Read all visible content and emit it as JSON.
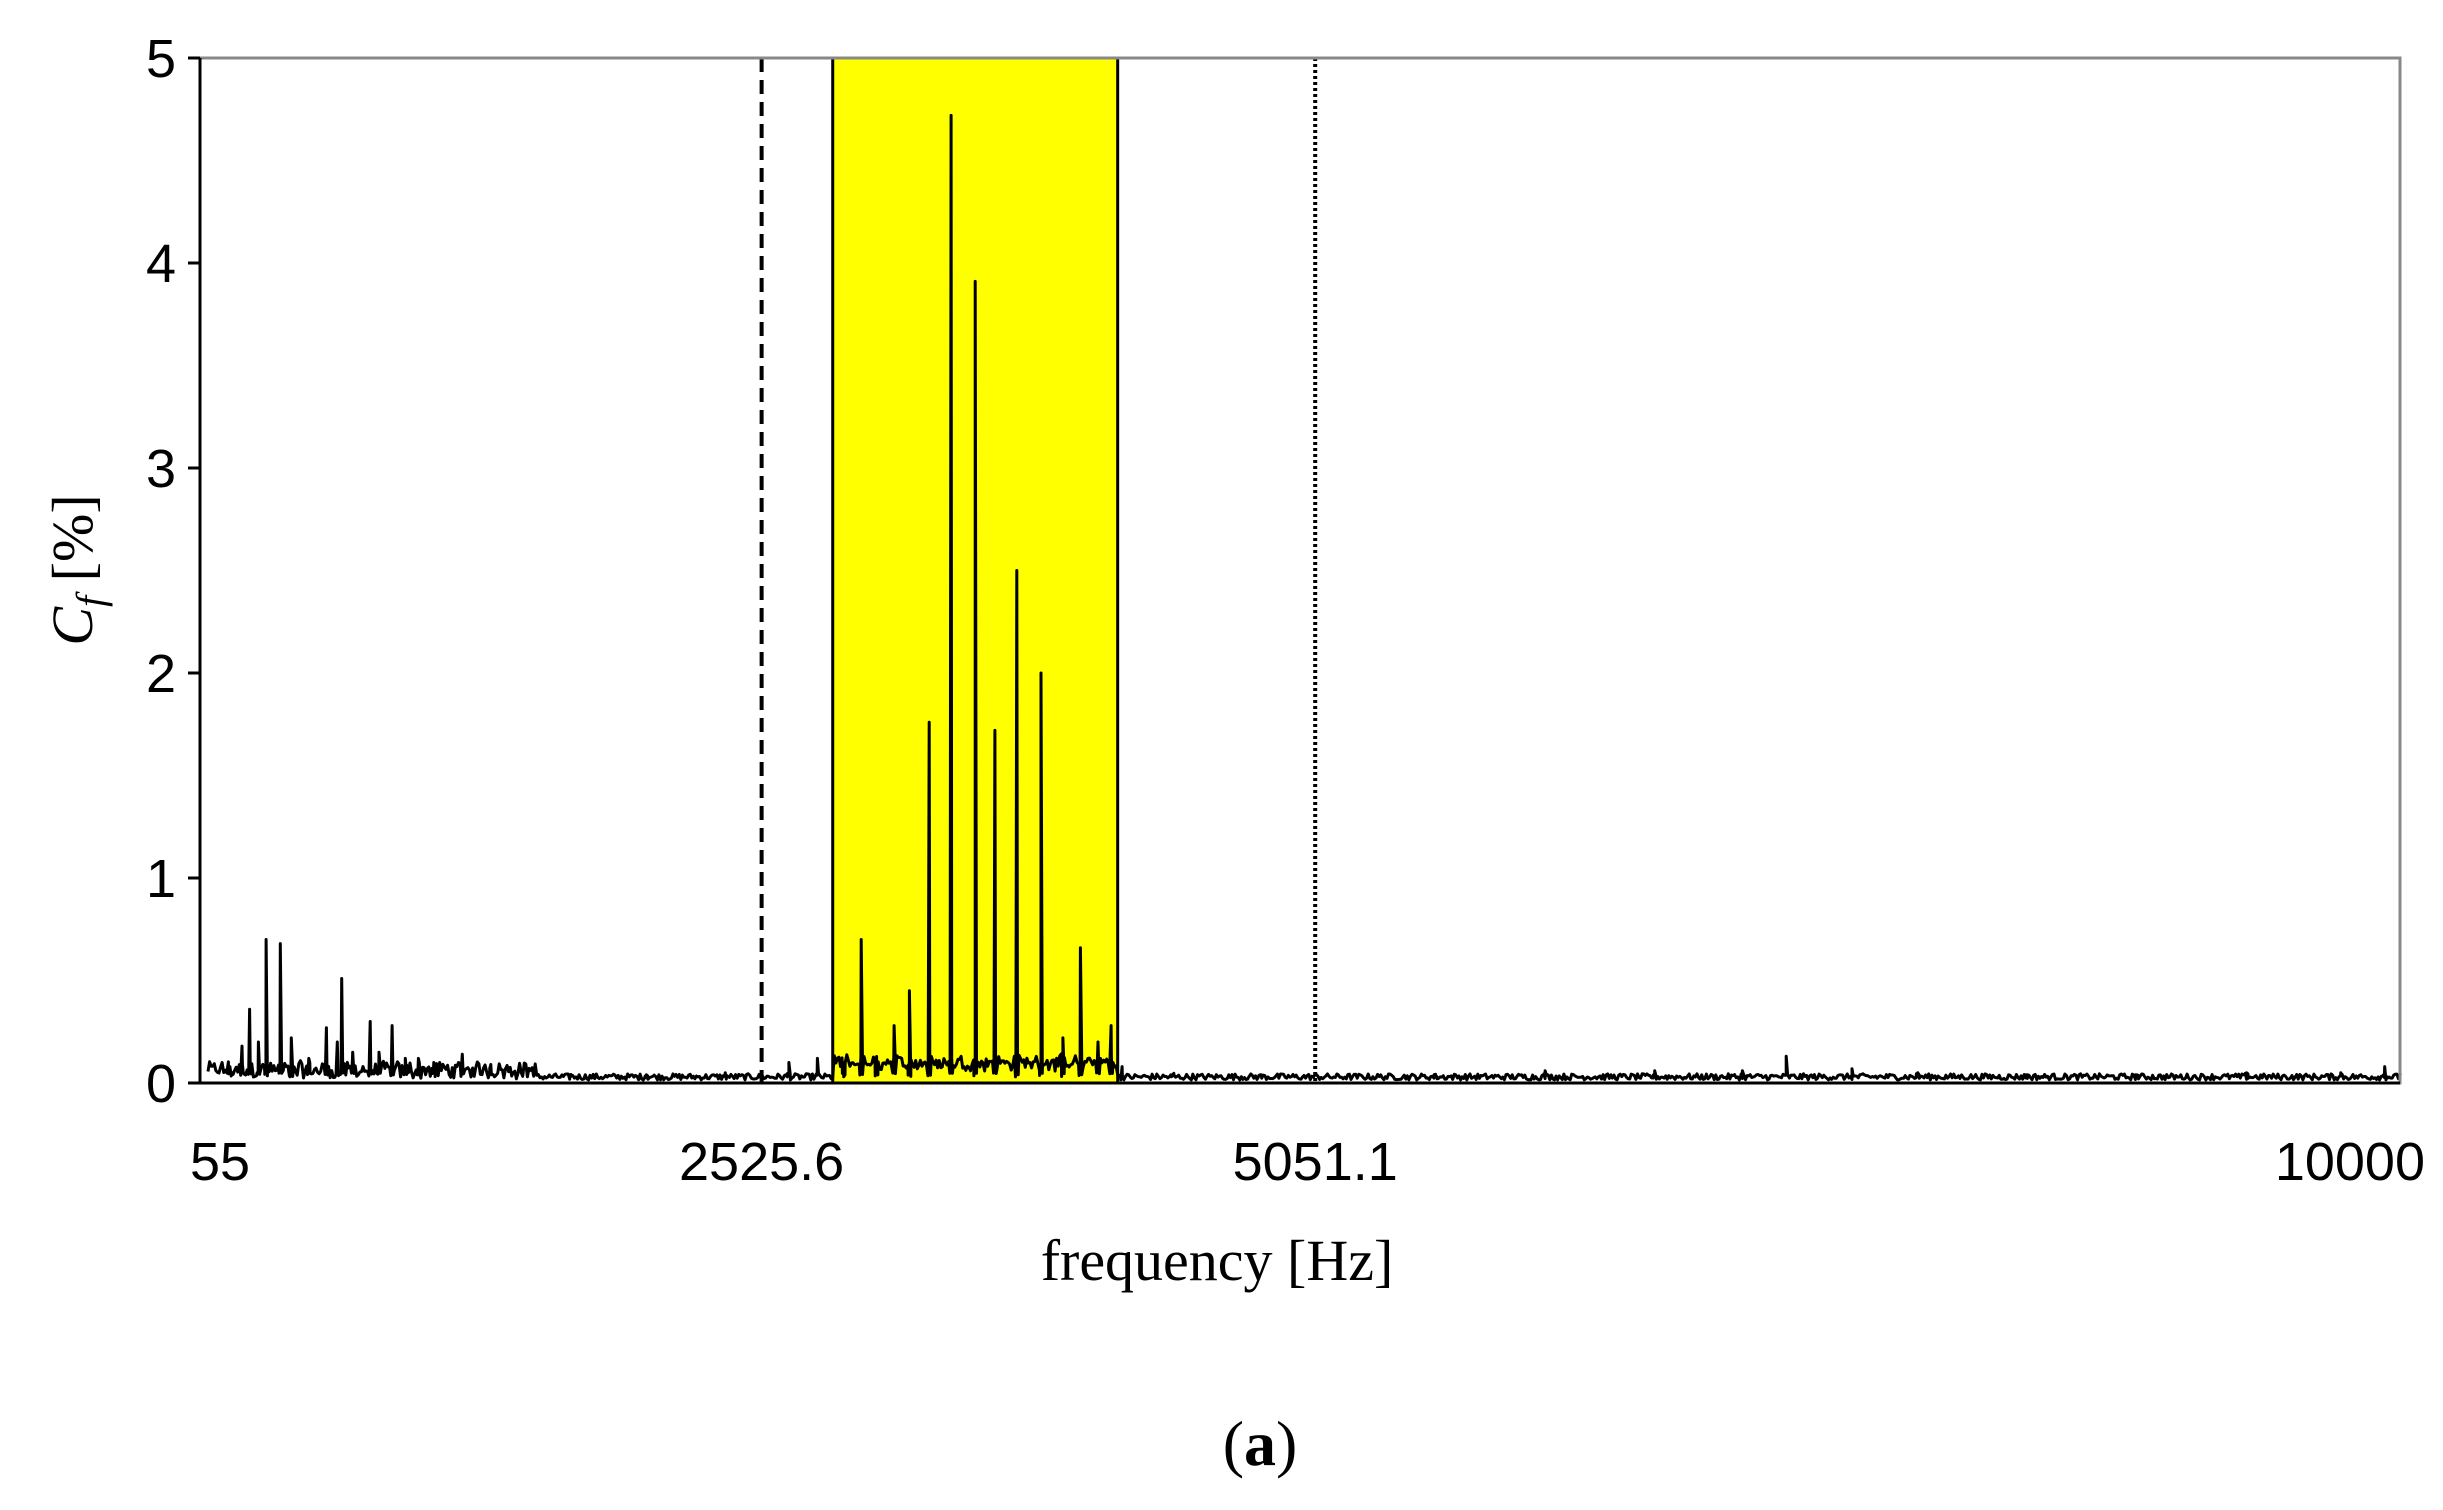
{
  "chart_data": {
    "type": "line",
    "xlabel": "frequency [Hz]",
    "ylabel_symbol": "C",
    "ylabel_subscript": "f",
    "ylabel_unit": "[%]",
    "panel_label": "a",
    "xlim": [
      0,
      10000
    ],
    "ylim": [
      0,
      5
    ],
    "xticks": [
      {
        "value": 55,
        "label": "55"
      },
      {
        "value": 2525.6,
        "label": "2525.6"
      },
      {
        "value": 5051.1,
        "label": "5051.1"
      },
      {
        "value": 10000,
        "label": "10000"
      }
    ],
    "yticks": [
      0,
      1,
      2,
      3,
      4,
      5
    ],
    "highlight_band": {
      "x_start": 2850,
      "x_end": 4150,
      "color": "#ffff00"
    },
    "reference_lines": [
      {
        "x": 2525.6,
        "style": "dashed"
      },
      {
        "x": 5051.1,
        "style": "dotted"
      }
    ],
    "series": [
      {
        "color": "#000000",
        "peaks": [
          [
            100,
            0.08
          ],
          [
            155,
            0.18
          ],
          [
            190,
            0.36
          ],
          [
            230,
            0.2
          ],
          [
            265,
            0.7
          ],
          [
            330,
            0.68
          ],
          [
            380,
            0.22
          ],
          [
            460,
            0.12
          ],
          [
            540,
            0.27
          ],
          [
            590,
            0.2
          ],
          [
            610,
            0.51
          ],
          [
            660,
            0.15
          ],
          [
            740,
            0.3
          ],
          [
            780,
            0.15
          ],
          [
            840,
            0.28
          ],
          [
            900,
            0.12
          ],
          [
            960,
            0.12
          ],
          [
            1030,
            0.1
          ],
          [
            1160,
            0.14
          ],
          [
            1290,
            0.09
          ],
          [
            1650,
            0.04
          ],
          [
            2000,
            0.04
          ],
          [
            2360,
            0.05
          ],
          [
            2650,
            0.1
          ],
          [
            2780,
            0.12
          ],
          [
            2900,
            0.03
          ],
          [
            2980,
            0.7
          ],
          [
            3050,
            0.05
          ],
          [
            3130,
            0.28
          ],
          [
            3200,
            0.45
          ],
          [
            3290,
            1.76
          ],
          [
            3390,
            4.72
          ],
          [
            3500,
            3.91
          ],
          [
            3590,
            1.72
          ],
          [
            3690,
            2.5
          ],
          [
            3800,
            2.0
          ],
          [
            3900,
            0.22
          ],
          [
            3980,
            0.66
          ],
          [
            4060,
            0.2
          ],
          [
            4120,
            0.28
          ],
          [
            4170,
            0.08
          ],
          [
            4400,
            0.04
          ],
          [
            4800,
            0.04
          ],
          [
            5600,
            0.04
          ],
          [
            6100,
            0.06
          ],
          [
            6600,
            0.06
          ],
          [
            7000,
            0.06
          ],
          [
            7200,
            0.13
          ],
          [
            7500,
            0.07
          ],
          [
            7800,
            0.05
          ],
          [
            8300,
            0.04
          ],
          [
            8800,
            0.04
          ],
          [
            9300,
            0.05
          ],
          [
            9730,
            0.05
          ],
          [
            9930,
            0.08
          ],
          [
            10000,
            0.04
          ]
        ]
      }
    ]
  }
}
